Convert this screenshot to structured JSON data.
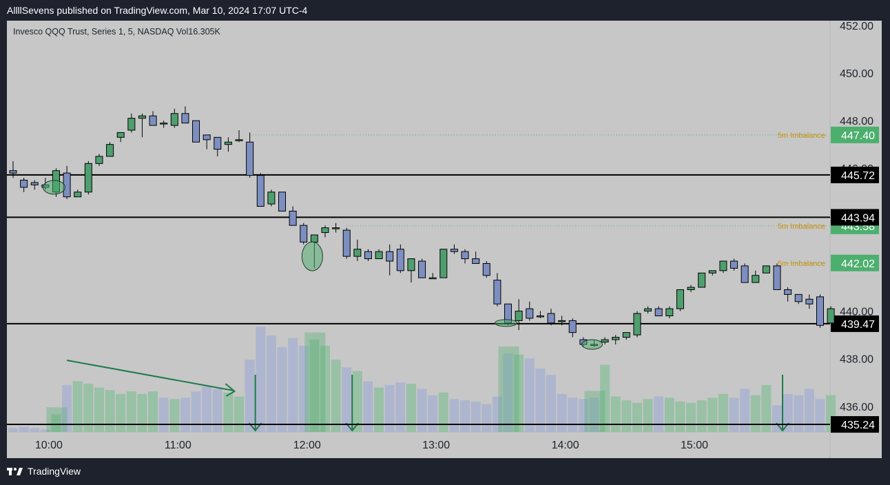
{
  "publisher": "AllllSevens published on TradingView.com, Mar 10, 2024 17:07 UTC-4",
  "legend": "Invesco QQQ Trust, Series 1, 5, NASDAQ  Vol16.305K",
  "brand": "TradingView",
  "colors": {
    "up": "#4f9f6e",
    "down": "#7d8fc1",
    "level": "#000000",
    "imbalance": "#4caf6e",
    "imbalance_text": "#c8900a"
  },
  "chart_data": {
    "type": "candlestick",
    "timeframe": "5m",
    "symbol": "QQQ",
    "y_ticks": [
      "452.00",
      "450.00",
      "448.00",
      "446.00",
      "440.00",
      "438.00",
      "436.00"
    ],
    "x_ticks": [
      "10:00",
      "11:00",
      "12:00",
      "13:00",
      "14:00",
      "15:00"
    ],
    "ylim": [
      434.2,
      452.2
    ],
    "volume_label": "Vol16.305K",
    "levels": [
      {
        "label": "445.72",
        "price": 445.72,
        "style": "solid"
      },
      {
        "label": "443.94",
        "price": 443.94,
        "style": "solid"
      },
      {
        "label": "439.47",
        "price": 439.47,
        "style": "solid"
      },
      {
        "label": "435.24",
        "price": 435.24,
        "style": "solid"
      }
    ],
    "imbalances": [
      {
        "label": "447.40",
        "price": 447.4,
        "text": "5m Imbalance"
      },
      {
        "label": "443.58",
        "price": 443.58,
        "text": "5m Imbalance"
      },
      {
        "label": "442.02",
        "price": 442.02,
        "text": "5m Imbalance"
      }
    ],
    "candles": [
      {
        "o": 445.9,
        "h": 446.3,
        "l": 445.6,
        "c": 445.8
      },
      {
        "o": 445.5,
        "h": 445.6,
        "l": 445.0,
        "c": 445.2
      },
      {
        "o": 445.4,
        "h": 445.5,
        "l": 445.1,
        "c": 445.3
      },
      {
        "o": 445.3,
        "h": 445.6,
        "l": 445.1,
        "c": 445.2
      },
      {
        "o": 445.0,
        "h": 446.0,
        "l": 444.8,
        "c": 445.9
      },
      {
        "o": 445.8,
        "h": 446.1,
        "l": 444.7,
        "c": 444.8
      },
      {
        "o": 444.8,
        "h": 445.1,
        "l": 444.8,
        "c": 445.0
      },
      {
        "o": 445.0,
        "h": 446.3,
        "l": 444.9,
        "c": 446.2
      },
      {
        "o": 446.2,
        "h": 446.6,
        "l": 446.1,
        "c": 446.5
      },
      {
        "o": 446.5,
        "h": 447.1,
        "l": 446.5,
        "c": 447.0
      },
      {
        "o": 447.3,
        "h": 447.5,
        "l": 447.1,
        "c": 447.5
      },
      {
        "o": 447.6,
        "h": 448.3,
        "l": 447.5,
        "c": 448.1
      },
      {
        "o": 448.1,
        "h": 448.3,
        "l": 447.3,
        "c": 448.2
      },
      {
        "o": 448.2,
        "h": 448.4,
        "l": 447.8,
        "c": 447.8
      },
      {
        "o": 447.9,
        "h": 448.0,
        "l": 447.7,
        "c": 447.9
      },
      {
        "o": 447.8,
        "h": 448.5,
        "l": 447.7,
        "c": 448.3
      },
      {
        "o": 448.3,
        "h": 448.6,
        "l": 447.9,
        "c": 447.9
      },
      {
        "o": 448.0,
        "h": 448.0,
        "l": 447.1,
        "c": 447.1
      },
      {
        "o": 447.4,
        "h": 447.4,
        "l": 446.8,
        "c": 447.2
      },
      {
        "o": 447.3,
        "h": 447.3,
        "l": 446.5,
        "c": 446.8
      },
      {
        "o": 447.0,
        "h": 447.3,
        "l": 446.7,
        "c": 447.1
      },
      {
        "o": 447.2,
        "h": 447.6,
        "l": 447.1,
        "c": 447.2
      },
      {
        "o": 447.1,
        "h": 447.5,
        "l": 445.6,
        "c": 445.7
      },
      {
        "o": 445.7,
        "h": 445.8,
        "l": 444.4,
        "c": 444.4
      },
      {
        "o": 444.5,
        "h": 445.1,
        "l": 444.4,
        "c": 445.0
      },
      {
        "o": 445.0,
        "h": 445.0,
        "l": 444.2,
        "c": 444.2
      },
      {
        "o": 444.2,
        "h": 444.4,
        "l": 443.6,
        "c": 443.6
      },
      {
        "o": 443.6,
        "h": 443.7,
        "l": 442.8,
        "c": 442.9
      },
      {
        "o": 442.9,
        "h": 443.2,
        "l": 441.8,
        "c": 443.2
      },
      {
        "o": 443.3,
        "h": 443.6,
        "l": 443.1,
        "c": 443.5
      },
      {
        "o": 443.5,
        "h": 443.7,
        "l": 443.3,
        "c": 443.5
      },
      {
        "o": 443.4,
        "h": 443.5,
        "l": 442.2,
        "c": 442.3
      },
      {
        "o": 442.3,
        "h": 443.0,
        "l": 442.1,
        "c": 442.6
      },
      {
        "o": 442.5,
        "h": 442.6,
        "l": 442.1,
        "c": 442.2
      },
      {
        "o": 442.2,
        "h": 442.6,
        "l": 442.2,
        "c": 442.5
      },
      {
        "o": 442.5,
        "h": 442.8,
        "l": 441.5,
        "c": 442.1
      },
      {
        "o": 442.6,
        "h": 442.8,
        "l": 441.6,
        "c": 441.7
      },
      {
        "o": 441.7,
        "h": 442.2,
        "l": 441.2,
        "c": 442.2
      },
      {
        "o": 442.1,
        "h": 442.2,
        "l": 441.4,
        "c": 441.4
      },
      {
        "o": 441.4,
        "h": 441.6,
        "l": 441.4,
        "c": 441.4
      },
      {
        "o": 441.4,
        "h": 442.6,
        "l": 441.4,
        "c": 442.6
      },
      {
        "o": 442.6,
        "h": 442.8,
        "l": 442.4,
        "c": 442.5
      },
      {
        "o": 442.5,
        "h": 442.6,
        "l": 442.0,
        "c": 442.2
      },
      {
        "o": 442.2,
        "h": 442.5,
        "l": 442.0,
        "c": 442.0
      },
      {
        "o": 442.0,
        "h": 442.1,
        "l": 441.4,
        "c": 441.5
      },
      {
        "o": 441.3,
        "h": 441.6,
        "l": 440.2,
        "c": 440.3
      },
      {
        "o": 440.3,
        "h": 440.3,
        "l": 439.4,
        "c": 439.5
      },
      {
        "o": 439.6,
        "h": 440.5,
        "l": 439.2,
        "c": 440.0
      },
      {
        "o": 440.1,
        "h": 440.4,
        "l": 439.6,
        "c": 439.7
      },
      {
        "o": 439.8,
        "h": 440.0,
        "l": 439.7,
        "c": 439.8
      },
      {
        "o": 439.9,
        "h": 440.1,
        "l": 439.4,
        "c": 439.5
      },
      {
        "o": 439.6,
        "h": 439.8,
        "l": 439.4,
        "c": 439.6
      },
      {
        "o": 439.6,
        "h": 439.7,
        "l": 438.9,
        "c": 439.1
      },
      {
        "o": 438.8,
        "h": 438.9,
        "l": 438.5,
        "c": 438.6
      },
      {
        "o": 438.6,
        "h": 438.8,
        "l": 438.5,
        "c": 438.6
      },
      {
        "o": 438.7,
        "h": 438.9,
        "l": 438.6,
        "c": 438.8
      },
      {
        "o": 438.8,
        "h": 439.0,
        "l": 438.6,
        "c": 438.9
      },
      {
        "o": 438.9,
        "h": 439.1,
        "l": 438.8,
        "c": 439.1
      },
      {
        "o": 439.0,
        "h": 440.0,
        "l": 438.9,
        "c": 439.9
      },
      {
        "o": 440.0,
        "h": 440.2,
        "l": 439.9,
        "c": 440.1
      },
      {
        "o": 440.1,
        "h": 440.2,
        "l": 439.8,
        "c": 439.8
      },
      {
        "o": 439.8,
        "h": 440.2,
        "l": 439.7,
        "c": 440.1
      },
      {
        "o": 440.1,
        "h": 440.9,
        "l": 440.0,
        "c": 440.9
      },
      {
        "o": 440.9,
        "h": 441.1,
        "l": 440.8,
        "c": 441.0
      },
      {
        "o": 441.0,
        "h": 441.6,
        "l": 441.0,
        "c": 441.6
      },
      {
        "o": 441.6,
        "h": 441.7,
        "l": 441.5,
        "c": 441.7
      },
      {
        "o": 441.7,
        "h": 442.1,
        "l": 441.6,
        "c": 442.1
      },
      {
        "o": 442.1,
        "h": 442.2,
        "l": 441.7,
        "c": 441.8
      },
      {
        "o": 441.9,
        "h": 442.0,
        "l": 441.2,
        "c": 441.2
      },
      {
        "o": 441.2,
        "h": 441.7,
        "l": 441.3,
        "c": 441.5
      },
      {
        "o": 441.6,
        "h": 441.9,
        "l": 441.6,
        "c": 441.9
      },
      {
        "o": 441.9,
        "h": 442.0,
        "l": 440.9,
        "c": 440.9
      },
      {
        "o": 440.9,
        "h": 441.0,
        "l": 440.4,
        "c": 440.7
      },
      {
        "o": 440.7,
        "h": 440.7,
        "l": 440.3,
        "c": 440.4
      },
      {
        "o": 440.5,
        "h": 440.7,
        "l": 440.1,
        "c": 440.3
      },
      {
        "o": 440.6,
        "h": 440.7,
        "l": 439.3,
        "c": 439.4
      },
      {
        "o": 439.5,
        "h": 440.2,
        "l": 439.5,
        "c": 440.1
      }
    ],
    "volume": [
      3,
      4,
      3,
      2,
      14,
      37,
      40,
      38,
      35,
      33,
      30,
      32,
      30,
      32,
      27,
      26,
      27,
      32,
      36,
      34,
      31,
      28,
      57,
      83,
      76,
      67,
      74,
      68,
      73,
      68,
      57,
      51,
      48,
      40,
      35,
      37,
      39,
      38,
      34,
      29,
      31,
      26,
      25,
      24,
      22,
      28,
      62,
      61,
      58,
      50,
      45,
      30,
      27,
      26,
      27,
      53,
      28,
      25,
      23,
      26,
      28,
      27,
      24,
      23,
      25,
      27,
      30,
      27,
      34,
      29,
      37,
      21,
      30,
      29,
      34,
      26,
      29
    ],
    "volume_up": [
      false,
      false,
      false,
      false,
      true,
      false,
      true,
      true,
      true,
      true,
      true,
      true,
      true,
      true,
      false,
      true,
      false,
      false,
      false,
      false,
      true,
      true,
      false,
      false,
      false,
      false,
      false,
      false,
      true,
      true,
      true,
      false,
      true,
      false,
      true,
      false,
      false,
      true,
      false,
      false,
      true,
      false,
      false,
      false,
      false,
      false,
      false,
      true,
      false,
      false,
      false,
      false,
      false,
      false,
      false,
      true,
      true,
      true,
      true,
      true,
      false,
      true,
      true,
      true,
      true,
      true,
      true,
      false,
      false,
      true,
      true,
      false,
      false,
      false,
      false,
      false,
      true
    ],
    "volume_highlights": [
      4,
      28,
      46,
      54
    ],
    "volume_arrow_down_at": [
      22,
      31,
      71
    ]
  }
}
